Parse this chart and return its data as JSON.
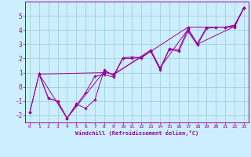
{
  "xlabel": "Windchill (Refroidissement éolien,°C)",
  "bg_color": "#cceeff",
  "grid_color": "#99cccc",
  "line_color": "#990099",
  "xlim": [
    -0.5,
    23.5
  ],
  "ylim": [
    -2.5,
    6.0
  ],
  "xticks": [
    0,
    1,
    2,
    3,
    4,
    5,
    6,
    7,
    8,
    9,
    10,
    11,
    12,
    13,
    14,
    15,
    16,
    17,
    18,
    19,
    20,
    21,
    22,
    23
  ],
  "yticks": [
    -2,
    -1,
    0,
    1,
    2,
    3,
    4,
    5
  ],
  "series1": [
    [
      0,
      -1.8
    ],
    [
      1,
      0.9
    ],
    [
      2,
      -0.8
    ],
    [
      3,
      -1.0
    ],
    [
      4,
      -2.2
    ],
    [
      5,
      -1.2
    ],
    [
      6,
      -1.5
    ],
    [
      7,
      -0.9
    ],
    [
      8,
      1.2
    ],
    [
      9,
      0.8
    ],
    [
      10,
      2.05
    ],
    [
      11,
      2.1
    ],
    [
      12,
      2.05
    ],
    [
      13,
      2.5
    ],
    [
      14,
      1.3
    ],
    [
      15,
      2.7
    ],
    [
      16,
      2.6
    ],
    [
      17,
      4.1
    ],
    [
      18,
      3.05
    ],
    [
      19,
      4.2
    ],
    [
      20,
      4.2
    ],
    [
      21,
      4.2
    ],
    [
      22,
      4.35
    ],
    [
      23,
      5.55
    ]
  ],
  "series2": [
    [
      0,
      -1.8
    ],
    [
      1,
      0.9
    ],
    [
      2,
      -0.8
    ],
    [
      3,
      -1.0
    ],
    [
      4,
      -2.2
    ],
    [
      5,
      -1.3
    ],
    [
      6,
      -0.4
    ],
    [
      7,
      0.75
    ],
    [
      8,
      0.85
    ],
    [
      9,
      0.7
    ],
    [
      10,
      2.0
    ],
    [
      11,
      2.0
    ],
    [
      12,
      2.1
    ],
    [
      13,
      2.5
    ],
    [
      14,
      1.2
    ],
    [
      15,
      2.65
    ],
    [
      16,
      2.5
    ],
    [
      17,
      3.9
    ],
    [
      18,
      2.95
    ],
    [
      19,
      4.1
    ],
    [
      20,
      4.2
    ],
    [
      21,
      4.2
    ],
    [
      22,
      4.3
    ],
    [
      23,
      5.55
    ]
  ],
  "series3": [
    [
      1,
      0.9
    ],
    [
      4,
      -2.2
    ],
    [
      8,
      1.1
    ],
    [
      9,
      0.85
    ],
    [
      13,
      2.6
    ],
    [
      14,
      1.35
    ],
    [
      17,
      4.05
    ],
    [
      18,
      3.0
    ],
    [
      22,
      4.25
    ],
    [
      23,
      5.55
    ]
  ],
  "series4": [
    [
      1,
      0.9
    ],
    [
      8,
      1.0
    ],
    [
      9,
      0.9
    ],
    [
      13,
      2.5
    ],
    [
      17,
      4.2
    ],
    [
      22,
      4.2
    ],
    [
      23,
      5.55
    ]
  ]
}
